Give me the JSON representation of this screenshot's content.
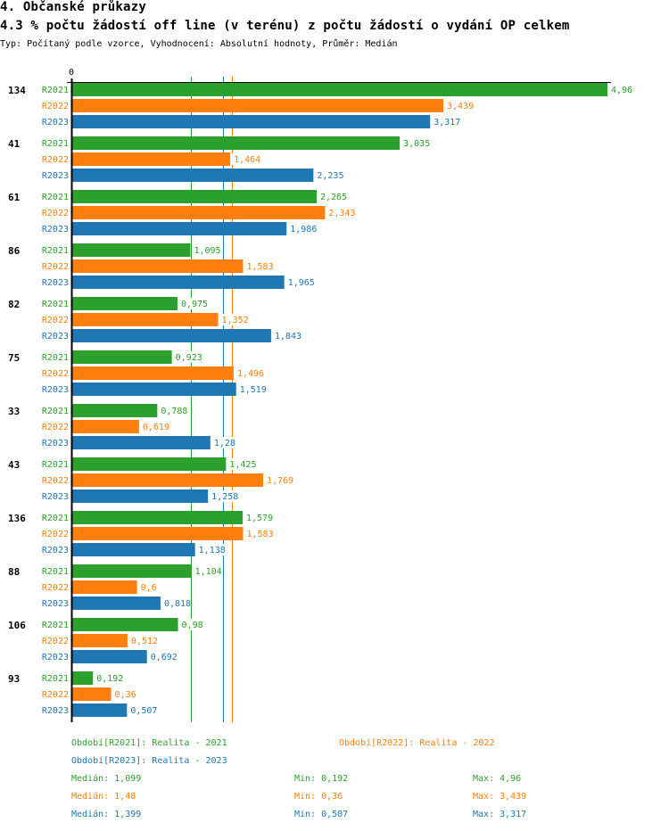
{
  "header": {
    "section_title": "4. Občanské průkazy",
    "chart_title": "4.3 % počtu žádostí off line (v terénu) z počtu žádostí o vydání OP celkem",
    "subtitle": "Typ: Počítaný podle vzorce, Vyhodnocení: Absolutní hodnoty, Průměr: Medián"
  },
  "chart_data": {
    "type": "bar",
    "orientation": "horizontal",
    "title": "4.3 % počtu žádostí off line (v terénu) z počtu žádostí o vydání OP celkem",
    "xlabel": "",
    "ylabel": "",
    "xlim": [
      0,
      4.96
    ],
    "x_tick_labels": [
      "0"
    ],
    "grid": false,
    "categories": [
      "134",
      "41",
      "61",
      "86",
      "82",
      "75",
      "33",
      "43",
      "136",
      "88",
      "106",
      "93"
    ],
    "series": [
      {
        "name": "R2021",
        "color": "#2ca02c",
        "values": [
          4.96,
          3.035,
          2.265,
          1.095,
          0.975,
          0.923,
          0.788,
          1.425,
          1.579,
          1.104,
          0.98,
          0.192
        ],
        "labels": [
          "4,96",
          "3,035",
          "2,265",
          "1,095",
          "0,975",
          "0,923",
          "0,788",
          "1,425",
          "1,579",
          "1,104",
          "0,98",
          "0,192"
        ]
      },
      {
        "name": "R2022",
        "color": "#ff7f0e",
        "values": [
          3.439,
          1.464,
          2.343,
          1.583,
          1.352,
          1.496,
          0.619,
          1.769,
          1.583,
          0.6,
          0.512,
          0.36
        ],
        "labels": [
          "3,439",
          "1,464",
          "2,343",
          "1,583",
          "1,352",
          "1,496",
          "0,619",
          "1,769",
          "1,583",
          "0,6",
          "0,512",
          "0,36"
        ]
      },
      {
        "name": "R2023",
        "color": "#1f77b4",
        "values": [
          3.317,
          2.235,
          1.986,
          1.965,
          1.843,
          1.519,
          1.28,
          1.258,
          1.138,
          0.818,
          0.692,
          0.507
        ],
        "labels": [
          "3,317",
          "2,235",
          "1,986",
          "1,965",
          "1,843",
          "1,519",
          "1,28",
          "1,258",
          "1,138",
          "0,818",
          "0,692",
          "0,507"
        ]
      }
    ],
    "median_lines": [
      {
        "series": "R2021",
        "value": 1.099,
        "color": "#2ca02c"
      },
      {
        "series": "R2022",
        "value": 1.48,
        "color": "#ff7f0e"
      },
      {
        "series": "R2023",
        "value": 1.399,
        "color": "#1f77b4"
      }
    ],
    "legend": {
      "placement": "bottom",
      "entries": [
        {
          "text": "Období[R2021]: Realita - 2021",
          "color": "#2ca02c"
        },
        {
          "text": "Období[R2022]: Realita - 2022",
          "color": "#ff7f0e"
        },
        {
          "text": "Období[R2023]: Realita - 2023",
          "color": "#1f77b4"
        }
      ]
    },
    "stats": [
      {
        "median": "Medián: 1,099",
        "min": "Min: 0,192",
        "max": "Max: 4,96",
        "color": "#2ca02c"
      },
      {
        "median": "Medián: 1,48",
        "min": "Min: 0,36",
        "max": "Max: 3,439",
        "color": "#ff7f0e"
      },
      {
        "median": "Medián: 1,399",
        "min": "Min: 0,507",
        "max": "Max: 3,317",
        "color": "#1f77b4"
      }
    ]
  }
}
